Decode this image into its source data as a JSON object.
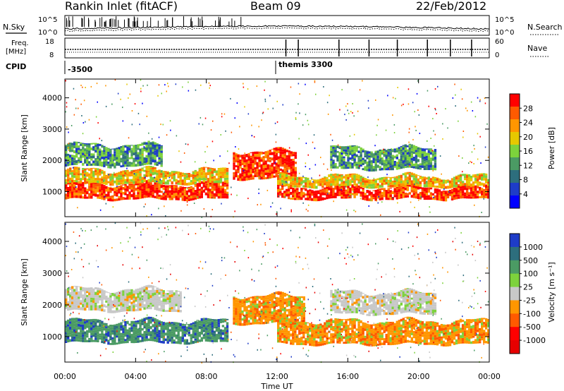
{
  "header": {
    "site": "Rankin Inlet (fitACF)",
    "beam": "Beam 09",
    "date": "22/Feb/2012"
  },
  "noise_panel": {
    "left_label": "N.Sky",
    "right_label": "N.Search",
    "ticks_left": [
      "10^5",
      "10^0"
    ],
    "ticks_right": [
      "10^5",
      "10^0"
    ]
  },
  "freq_panel": {
    "left_label_1": "Freq.",
    "left_label_2": "[MHz]",
    "right_label": "Nave",
    "ticks_left": [
      "18",
      "8"
    ],
    "ticks_right": [
      "60",
      "0"
    ]
  },
  "cpid": {
    "label": "CPID",
    "entries": [
      {
        "id": "-3500",
        "time_h": 0.0
      },
      {
        "id": "themis 3300",
        "time_h": 12.0
      }
    ]
  },
  "chart_data": [
    {
      "type": "heatmap",
      "name": "power",
      "ylabel": "Slant Range [km]",
      "xlabel": "Time UT",
      "xlim": [
        0,
        24
      ],
      "ylim": [
        200,
        4600
      ],
      "yticks": [
        "1000",
        "2000",
        "3000",
        "4000"
      ],
      "xticks": [
        "00:00",
        "04:00",
        "08:00",
        "12:00",
        "16:00",
        "20:00",
        "00:00"
      ],
      "colorbar": {
        "label": "Power [dB]",
        "ticks": [
          "28",
          "24",
          "20",
          "16",
          "12",
          "8",
          "4"
        ],
        "colors": [
          "#ff0000",
          "#ff5a00",
          "#ff9600",
          "#e6c800",
          "#7dd23c",
          "#4b9b64",
          "#2d6e7d",
          "#1e3cc8",
          "#0000ff"
        ]
      },
      "bands": [
        {
          "t0": 0.0,
          "t1": 9.2,
          "r0": 750,
          "r1": 1250,
          "level": "high"
        },
        {
          "t0": 0.0,
          "t1": 9.2,
          "r0": 1250,
          "r1": 1700,
          "level": "mid"
        },
        {
          "t0": 0.0,
          "t1": 5.5,
          "r0": 1800,
          "r1": 2500,
          "level": "low"
        },
        {
          "t0": 9.5,
          "t1": 13.0,
          "r0": 1400,
          "r1": 2300,
          "level": "high"
        },
        {
          "t0": 12.0,
          "t1": 24.0,
          "r0": 750,
          "r1": 1150,
          "level": "high"
        },
        {
          "t0": 12.0,
          "t1": 24.0,
          "r0": 1150,
          "r1": 1500,
          "level": "mid"
        },
        {
          "t0": 15.0,
          "t1": 21.0,
          "r0": 1700,
          "r1": 2400,
          "level": "low"
        }
      ]
    },
    {
      "type": "heatmap",
      "name": "velocity",
      "ylabel": "Slant Range [km]",
      "xlabel": "Time UT",
      "xlim": [
        0,
        24
      ],
      "ylim": [
        200,
        4600
      ],
      "yticks": [
        "1000",
        "2000",
        "3000",
        "4000"
      ],
      "xticks": [
        "00:00",
        "04:00",
        "08:00",
        "12:00",
        "16:00",
        "20:00",
        "00:00"
      ],
      "colorbar": {
        "label": "Velocity [m s⁻¹]",
        "ticks": [
          "1000",
          "500",
          "100",
          "25",
          "-25",
          "-100",
          "-500",
          "-1000"
        ],
        "colors": [
          "#1e3cc8",
          "#2d6e7d",
          "#4b9b64",
          "#7dd23c",
          "#c8c8c8",
          "#ff9600",
          "#ff5a00",
          "#ff0000",
          "#e60000"
        ]
      },
      "bands": [
        {
          "t0": 0.0,
          "t1": 9.2,
          "r0": 800,
          "r1": 1500,
          "level": "positive"
        },
        {
          "t0": 0.0,
          "t1": 6.5,
          "r0": 1800,
          "r1": 2500,
          "level": "ground"
        },
        {
          "t0": 9.5,
          "t1": 13.5,
          "r0": 1400,
          "r1": 2300,
          "level": "negative"
        },
        {
          "t0": 12.0,
          "t1": 24.0,
          "r0": 750,
          "r1": 1500,
          "level": "negative"
        },
        {
          "t0": 15.0,
          "t1": 21.0,
          "r0": 1700,
          "r1": 2400,
          "level": "ground"
        }
      ]
    }
  ],
  "xaxis": {
    "label": "Time UT"
  }
}
